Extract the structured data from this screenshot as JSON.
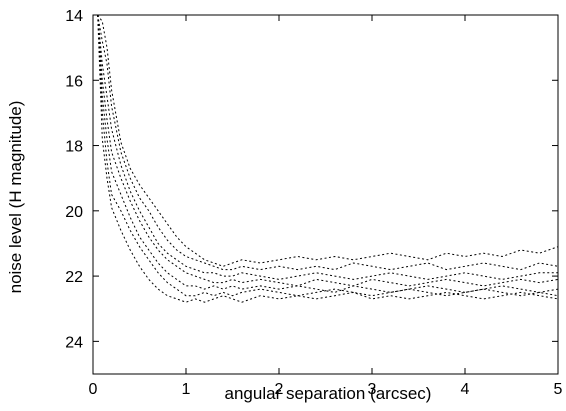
{
  "chart_data": {
    "type": "line",
    "title": "",
    "xlabel": "angular separation (arcsec)",
    "ylabel": "noise level (H magnitude)",
    "xlim": [
      0,
      5
    ],
    "ylim": [
      14,
      25
    ],
    "y_inverted": true,
    "grid": false,
    "legend": "none",
    "x_ticks": [
      0,
      1,
      2,
      3,
      4,
      5
    ],
    "y_ticks": [
      14,
      16,
      18,
      20,
      22,
      24
    ],
    "x_tick_labels": [
      "0",
      "1",
      "2",
      "3",
      "4",
      "5"
    ],
    "y_tick_labels": [
      "14",
      "16",
      "18",
      "20",
      "22",
      "24"
    ],
    "line_color": "#000000",
    "series": [
      {
        "x": [
          0.05,
          0.1,
          0.15,
          0.2,
          0.3,
          0.4,
          0.5,
          0.6,
          0.7,
          0.8,
          0.9,
          1.0,
          1.1,
          1.2,
          1.3,
          1.4,
          1.5,
          1.6,
          1.8,
          2.0,
          2.2,
          2.4,
          2.6,
          2.8,
          3.0,
          3.2,
          3.4,
          3.6,
          3.8,
          4.0,
          4.2,
          4.4,
          4.6,
          4.8,
          5.0
        ],
        "values": [
          14.0,
          14.2,
          15.0,
          16.3,
          17.9,
          18.7,
          19.2,
          19.6,
          20.0,
          20.4,
          20.8,
          21.1,
          21.3,
          21.5,
          21.6,
          21.7,
          21.6,
          21.5,
          21.6,
          21.5,
          21.4,
          21.5,
          21.4,
          21.5,
          21.4,
          21.3,
          21.4,
          21.5,
          21.3,
          21.4,
          21.3,
          21.4,
          21.2,
          21.3,
          21.1
        ]
      },
      {
        "x": [
          0.05,
          0.1,
          0.15,
          0.2,
          0.3,
          0.4,
          0.5,
          0.6,
          0.7,
          0.8,
          0.9,
          1.0,
          1.1,
          1.2,
          1.3,
          1.4,
          1.5,
          1.6,
          1.8,
          2.0,
          2.2,
          2.4,
          2.6,
          2.8,
          3.0,
          3.2,
          3.4,
          3.6,
          3.8,
          4.0,
          4.2,
          4.4,
          4.6,
          4.8,
          5.0
        ],
        "values": [
          14.0,
          14.8,
          15.5,
          16.8,
          18.2,
          19.0,
          19.6,
          20.0,
          20.5,
          20.9,
          21.2,
          21.4,
          21.5,
          21.6,
          21.7,
          21.8,
          21.8,
          21.7,
          21.8,
          21.7,
          21.8,
          21.7,
          21.8,
          21.6,
          21.7,
          21.8,
          21.7,
          21.6,
          21.8,
          21.7,
          21.6,
          21.7,
          21.8,
          21.6,
          21.7
        ]
      },
      {
        "x": [
          0.05,
          0.1,
          0.15,
          0.2,
          0.3,
          0.4,
          0.5,
          0.6,
          0.7,
          0.8,
          0.9,
          1.0,
          1.1,
          1.2,
          1.3,
          1.4,
          1.5,
          1.6,
          1.8,
          2.0,
          2.2,
          2.4,
          2.6,
          2.8,
          3.0,
          3.2,
          3.4,
          3.6,
          3.8,
          4.0,
          4.2,
          4.4,
          4.6,
          4.8,
          5.0
        ],
        "values": [
          14.0,
          15.5,
          16.5,
          17.5,
          18.6,
          19.4,
          20.0,
          20.5,
          21.0,
          21.3,
          21.5,
          21.7,
          21.8,
          21.9,
          21.9,
          22.0,
          22.0,
          21.9,
          22.0,
          22.1,
          22.0,
          21.9,
          22.0,
          22.1,
          22.0,
          21.9,
          22.0,
          22.1,
          22.0,
          21.9,
          22.0,
          22.1,
          22.0,
          21.9,
          21.9
        ]
      },
      {
        "x": [
          0.05,
          0.1,
          0.15,
          0.2,
          0.3,
          0.4,
          0.5,
          0.6,
          0.7,
          0.8,
          0.9,
          1.0,
          1.1,
          1.2,
          1.3,
          1.4,
          1.5,
          1.6,
          1.8,
          2.0,
          2.2,
          2.4,
          2.6,
          2.8,
          3.0,
          3.2,
          3.4,
          3.6,
          3.8,
          4.0,
          4.2,
          4.4,
          4.6,
          4.8,
          5.0
        ],
        "values": [
          14.0,
          16.0,
          17.2,
          18.2,
          19.0,
          19.7,
          20.3,
          20.8,
          21.2,
          21.5,
          21.7,
          21.9,
          22.0,
          22.1,
          22.2,
          22.2,
          22.1,
          22.2,
          22.1,
          22.2,
          22.3,
          22.1,
          22.2,
          22.3,
          22.1,
          22.2,
          22.3,
          22.2,
          22.1,
          22.2,
          22.3,
          22.2,
          22.1,
          22.2,
          22.1
        ]
      },
      {
        "x": [
          0.05,
          0.1,
          0.15,
          0.2,
          0.3,
          0.4,
          0.5,
          0.6,
          0.7,
          0.8,
          0.9,
          1.0,
          1.1,
          1.2,
          1.3,
          1.4,
          1.5,
          1.6,
          1.8,
          2.0,
          2.2,
          2.4,
          2.6,
          2.8,
          3.0,
          3.2,
          3.4,
          3.6,
          3.8,
          4.0,
          4.2,
          4.4,
          4.6,
          4.8,
          5.0
        ],
        "values": [
          14.0,
          16.5,
          17.8,
          18.8,
          19.5,
          20.2,
          20.8,
          21.2,
          21.6,
          21.9,
          22.1,
          22.3,
          22.3,
          22.4,
          22.3,
          22.4,
          22.3,
          22.4,
          22.3,
          22.4,
          22.3,
          22.4,
          22.5,
          22.3,
          22.4,
          22.5,
          22.4,
          22.3,
          22.4,
          22.5,
          22.4,
          22.3,
          22.4,
          22.5,
          22.4
        ]
      },
      {
        "x": [
          0.05,
          0.1,
          0.15,
          0.2,
          0.3,
          0.4,
          0.5,
          0.6,
          0.7,
          0.8,
          0.9,
          1.0,
          1.1,
          1.2,
          1.3,
          1.4,
          1.5,
          1.6,
          1.8,
          2.0,
          2.2,
          2.4,
          2.6,
          2.8,
          3.0,
          3.2,
          3.4,
          3.6,
          3.8,
          4.0,
          4.2,
          4.4,
          4.6,
          4.8,
          5.0
        ],
        "values": [
          14.0,
          17.0,
          18.5,
          19.5,
          20.0,
          20.6,
          21.1,
          21.5,
          21.9,
          22.2,
          22.4,
          22.6,
          22.6,
          22.5,
          22.6,
          22.5,
          22.6,
          22.5,
          22.4,
          22.5,
          22.6,
          22.5,
          22.4,
          22.5,
          22.6,
          22.5,
          22.4,
          22.5,
          22.6,
          22.5,
          22.4,
          22.5,
          22.6,
          22.5,
          22.6
        ]
      },
      {
        "x": [
          0.05,
          0.1,
          0.15,
          0.2,
          0.3,
          0.4,
          0.5,
          0.6,
          0.7,
          0.8,
          0.9,
          1.0,
          1.1,
          1.2,
          1.3,
          1.4,
          1.5,
          1.6,
          1.8,
          2.0,
          2.2,
          2.4,
          2.6,
          2.8,
          3.0,
          3.2,
          3.4,
          3.6,
          3.8,
          4.0,
          4.2,
          4.4,
          4.6,
          4.8,
          5.0
        ],
        "values": [
          14.0,
          17.8,
          19.0,
          19.9,
          20.6,
          21.2,
          21.7,
          22.1,
          22.4,
          22.6,
          22.7,
          22.8,
          22.7,
          22.8,
          22.7,
          22.6,
          22.7,
          22.8,
          22.6,
          22.7,
          22.6,
          22.7,
          22.6,
          22.5,
          22.7,
          22.6,
          22.7,
          22.6,
          22.5,
          22.6,
          22.7,
          22.6,
          22.5,
          22.6,
          22.7
        ]
      }
    ]
  }
}
